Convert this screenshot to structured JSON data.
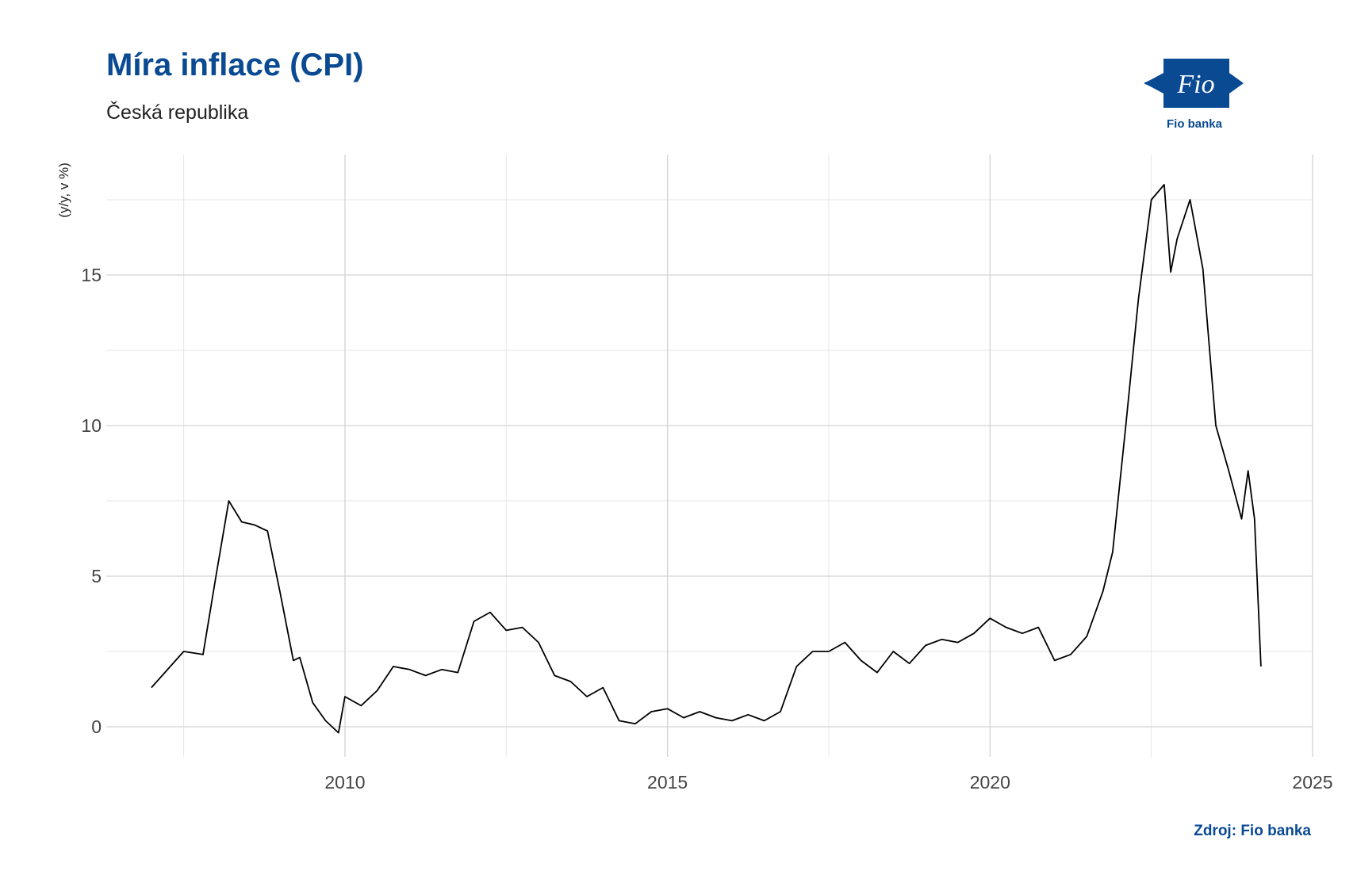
{
  "header": {
    "title": "Míra inflace (CPI)",
    "subtitle": "Česká republika"
  },
  "logo": {
    "mark_text": "Fio",
    "caption": "Fio banka",
    "color": "#0a4a92"
  },
  "footer": {
    "source": "Zdroj: Fio banka"
  },
  "chart_data": {
    "type": "line",
    "ylabel": "(y/y, v %)",
    "xlabel": "",
    "xlim": [
      2006.3,
      2025.0
    ],
    "ylim": [
      -1.0,
      19.0
    ],
    "x_ticks": [
      2010,
      2015,
      2020,
      2025
    ],
    "y_ticks": [
      0,
      5,
      10,
      15
    ],
    "grid": true,
    "line_color": "#000000",
    "series": [
      {
        "x": [
          2007.0,
          2007.5,
          2007.8,
          2008.0,
          2008.2,
          2008.4,
          2008.6,
          2008.8,
          2009.0,
          2009.2,
          2009.3,
          2009.5,
          2009.7,
          2009.9,
          2010.0,
          2010.25,
          2010.5,
          2010.75,
          2011.0,
          2011.25,
          2011.5,
          2011.75,
          2012.0,
          2012.25,
          2012.5,
          2012.75,
          2013.0,
          2013.25,
          2013.5,
          2013.75,
          2014.0,
          2014.25,
          2014.5,
          2014.75,
          2015.0,
          2015.25,
          2015.5,
          2015.75,
          2016.0,
          2016.25,
          2016.5,
          2016.75,
          2017.0,
          2017.25,
          2017.5,
          2017.75,
          2018.0,
          2018.25,
          2018.5,
          2018.75,
          2019.0,
          2019.25,
          2019.5,
          2019.75,
          2020.0,
          2020.25,
          2020.5,
          2020.75,
          2021.0,
          2021.25,
          2021.5,
          2021.75,
          2021.9,
          2022.1,
          2022.3,
          2022.5,
          2022.7,
          2022.8,
          2022.9,
          2023.1,
          2023.3,
          2023.5,
          2023.7,
          2023.9,
          2024.0,
          2024.1,
          2024.2
        ],
        "y": [
          1.3,
          2.5,
          2.4,
          5.0,
          7.5,
          6.8,
          6.7,
          6.5,
          4.4,
          2.2,
          2.3,
          0.8,
          0.2,
          -0.2,
          1.0,
          0.7,
          1.2,
          2.0,
          1.9,
          1.7,
          1.9,
          1.8,
          3.5,
          3.8,
          3.2,
          3.3,
          2.8,
          1.7,
          1.5,
          1.0,
          1.3,
          0.2,
          0.1,
          0.5,
          0.6,
          0.3,
          0.5,
          0.3,
          0.2,
          0.4,
          0.2,
          0.5,
          2.0,
          2.5,
          2.5,
          2.8,
          2.2,
          1.8,
          2.5,
          2.1,
          2.7,
          2.9,
          2.8,
          3.1,
          3.6,
          3.3,
          3.1,
          3.3,
          2.2,
          2.4,
          3.0,
          4.5,
          5.8,
          9.9,
          14.2,
          17.5,
          18.0,
          15.1,
          16.2,
          17.5,
          15.2,
          10.0,
          8.5,
          6.9,
          8.5,
          6.9,
          2.0
        ]
      }
    ]
  }
}
